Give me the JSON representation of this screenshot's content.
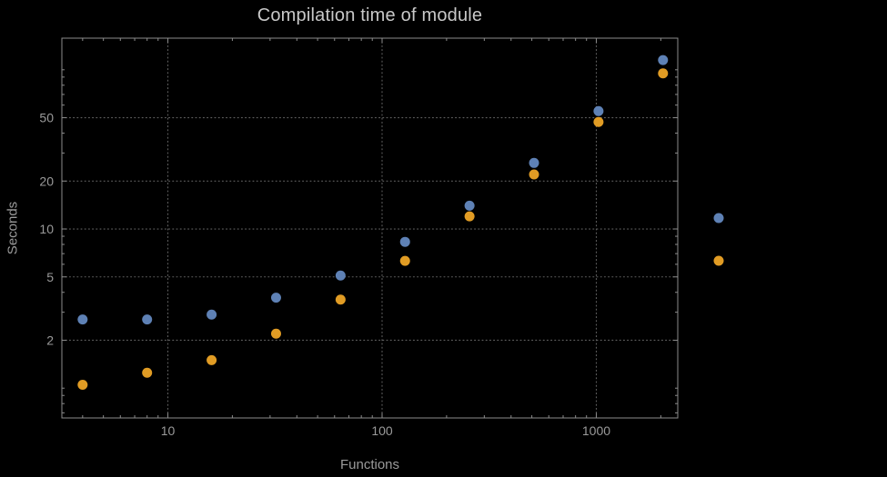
{
  "chart_data": {
    "type": "scatter",
    "title": "Compilation time of module",
    "xlabel": "Functions",
    "ylabel": "Seconds",
    "x_scale": "log",
    "y_scale": "log",
    "xlim": [
      3.2,
      2400
    ],
    "ylim": [
      0.65,
      158
    ],
    "x_ticks": [
      10,
      100,
      1000
    ],
    "y_ticks": [
      2,
      5,
      10,
      20,
      50
    ],
    "grid": true,
    "grid_style": "dotted",
    "x": [
      4,
      8,
      16,
      32,
      64,
      128,
      256,
      512,
      1024,
      2048
    ],
    "series": [
      {
        "name": "series-blue",
        "color": "#5e81b5",
        "values": [
          2.7,
          2.7,
          2.9,
          3.7,
          5.1,
          8.3,
          14,
          26,
          55,
          115
        ]
      },
      {
        "name": "series-orange",
        "color": "#e19c24",
        "values": [
          1.05,
          1.25,
          1.5,
          2.2,
          3.6,
          6.3,
          12,
          22,
          47,
          95
        ]
      }
    ],
    "legend": {
      "position": "right-outside",
      "labels_visible": false,
      "markers": [
        {
          "series": "series-blue",
          "color": "#5e81b5"
        },
        {
          "series": "series-orange",
          "color": "#e19c24"
        }
      ]
    }
  },
  "style": {
    "background": "#000000",
    "title_color": "#c8c8c8",
    "axis_label_color": "#9a9a9a",
    "tick_label_color": "#9a9a9a",
    "frame_color": "#8c8c8c",
    "grid_color": "#5f5f5f",
    "point_radius": 5.5
  }
}
